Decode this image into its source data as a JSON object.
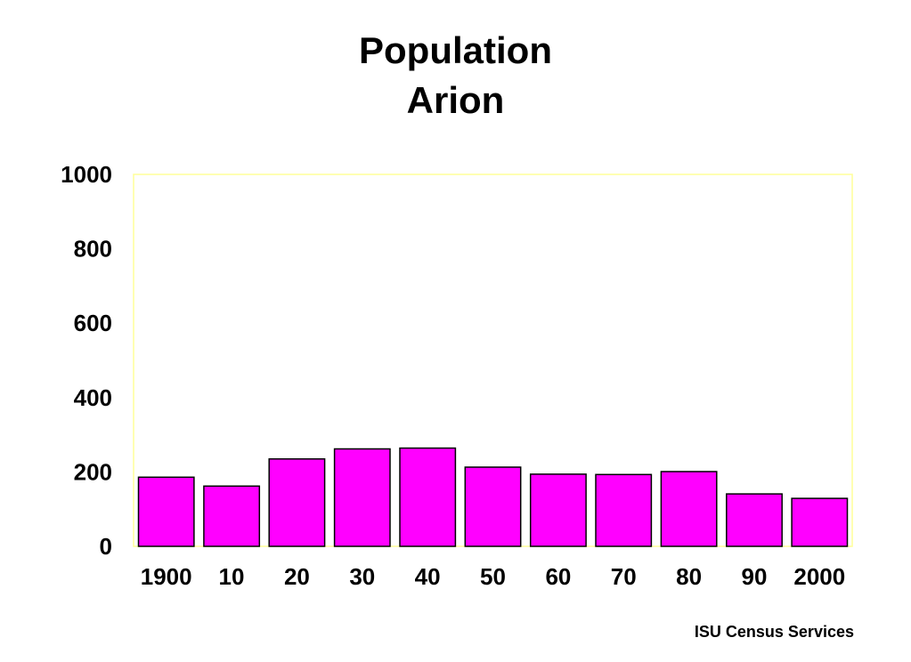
{
  "title_line1": "Population",
  "title_line2": "Arion",
  "footer": "ISU Census Services",
  "colors": {
    "bar": "#ff00ff",
    "plot_border": "#ffff99",
    "bar_stroke": "#000000"
  },
  "chart_data": {
    "type": "bar",
    "title": "Population Arion",
    "categories": [
      "1900",
      "10",
      "20",
      "30",
      "40",
      "50",
      "60",
      "70",
      "80",
      "90",
      "2000"
    ],
    "values": [
      186,
      162,
      235,
      262,
      264,
      213,
      194,
      193,
      201,
      141,
      129
    ],
    "yticks": [
      "0",
      "200",
      "400",
      "600",
      "800",
      "1000"
    ],
    "ylim": [
      0,
      1000
    ],
    "xlabel": "",
    "ylabel": "",
    "grid": false,
    "legend": "none"
  }
}
